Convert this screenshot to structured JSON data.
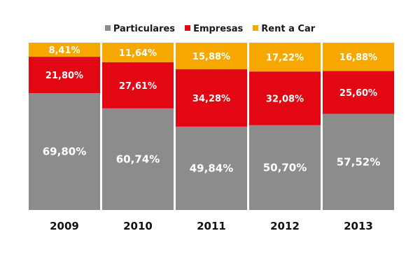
{
  "chart_data": {
    "type": "bar",
    "stacked": true,
    "normalized_percent": true,
    "categories": [
      "2009",
      "2010",
      "2011",
      "2012",
      "2013"
    ],
    "series": [
      {
        "name": "Particulares",
        "color": "#8c8c8c",
        "values": [
          69.8,
          60.74,
          49.84,
          50.7,
          57.52
        ],
        "labels": [
          "69,80%",
          "60,74%",
          "49,84%",
          "50,70%",
          "57,52%"
        ]
      },
      {
        "name": "Empresas",
        "color": "#e30613",
        "values": [
          21.8,
          27.61,
          34.28,
          32.08,
          25.6
        ],
        "labels": [
          "21,80%",
          "27,61%",
          "34,28%",
          "32,08%",
          "25,60%"
        ]
      },
      {
        "name": "Rent a Car",
        "color": "#f6a800",
        "values": [
          8.41,
          11.64,
          15.88,
          17.22,
          16.88
        ],
        "labels": [
          "8,41%",
          "11,64%",
          "15,88%",
          "17,22%",
          "16,88%"
        ]
      }
    ],
    "ylim": [
      0,
      100
    ],
    "grid": false,
    "legend_position": "top-center"
  }
}
